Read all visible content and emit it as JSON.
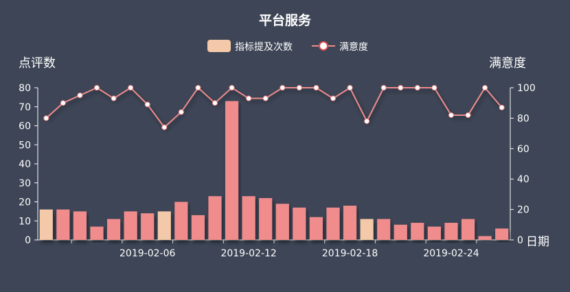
{
  "chart_data": {
    "type": "bar+line",
    "title": "平台服务",
    "legend": {
      "position": "top-center",
      "items": [
        {
          "name": "指标提及次数",
          "marker": "rect",
          "color": "#f4c9a9"
        },
        {
          "name": "满意度",
          "marker": "line-circle",
          "color": "#f08c8c"
        }
      ]
    },
    "xlabel": "日期",
    "ylabel_left": "点评数",
    "ylabel_right": "满意度",
    "ylim_left": [
      0,
      80
    ],
    "yticks_left": [
      "0",
      "10",
      "20",
      "30",
      "40",
      "50",
      "60",
      "70",
      "80"
    ],
    "ylim_right": [
      0,
      100
    ],
    "yticks_right": [
      "0",
      "20",
      "40",
      "60",
      "80",
      "100"
    ],
    "xtick_labels": [
      "2019-02-06",
      "2019-02-12",
      "2019-02-18",
      "2019-02-24"
    ],
    "xtick_label_indices": [
      6,
      12,
      18,
      24
    ],
    "categories": [
      "2019-01-31",
      "2019-02-01",
      "2019-02-02",
      "2019-02-03",
      "2019-02-04",
      "2019-02-05",
      "2019-02-06",
      "2019-02-07",
      "2019-02-08",
      "2019-02-09",
      "2019-02-10",
      "2019-02-11",
      "2019-02-12",
      "2019-02-13",
      "2019-02-14",
      "2019-02-15",
      "2019-02-16",
      "2019-02-17",
      "2019-02-18",
      "2019-02-19",
      "2019-02-20",
      "2019-02-21",
      "2019-02-22",
      "2019-02-23",
      "2019-02-24",
      "2019-02-25",
      "2019-02-26",
      "2019-02-27"
    ],
    "series": [
      {
        "name": "指标提及次数",
        "type": "bar",
        "axis": "left",
        "values": [
          16,
          16,
          15,
          7,
          11,
          15,
          14,
          15,
          20,
          13,
          23,
          73,
          23,
          22,
          19,
          17,
          12,
          17,
          18,
          11,
          11,
          8,
          9,
          7,
          9,
          11,
          2,
          6
        ],
        "highlight_indices": [
          0,
          7,
          19
        ],
        "color": "#f08c8c",
        "highlight_color": "#f4c9a9"
      },
      {
        "name": "满意度",
        "type": "line",
        "axis": "right",
        "values": [
          80,
          90,
          95,
          100,
          93,
          100,
          89,
          74,
          84,
          100,
          90,
          100,
          93,
          93,
          100,
          100,
          100,
          93,
          100,
          78,
          100,
          100,
          100,
          100,
          82,
          82,
          100,
          87
        ],
        "color": "#f08c8c"
      }
    ],
    "colors": {
      "background": "#3d4556",
      "text": "#ffffff",
      "axis": "#ffffff"
    }
  }
}
